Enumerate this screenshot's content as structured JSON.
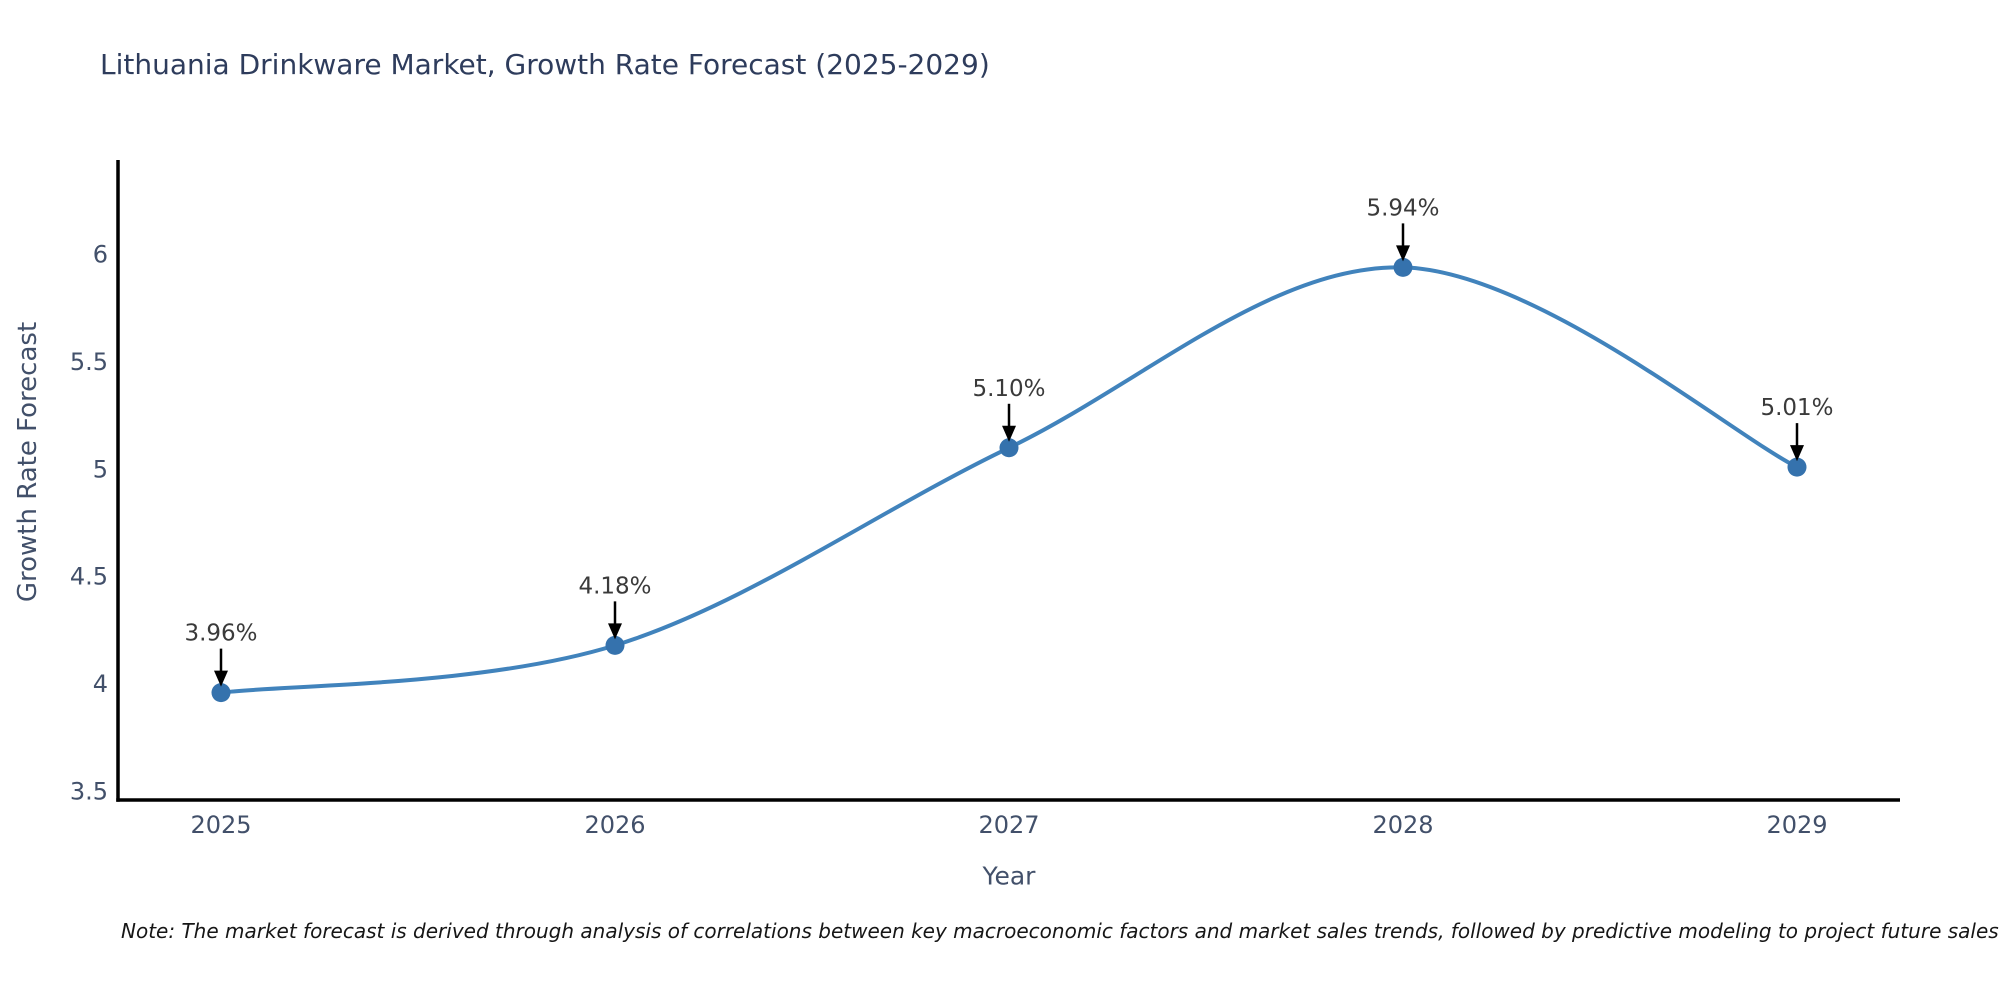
{
  "title": "Lithuania Drinkware Market, Growth Rate Forecast (2025-2029)",
  "note": "Note: The market forecast is derived through analysis of correlations between key macroeconomic factors and market sales trends, followed by predictive modeling to project future sales",
  "colors": {
    "title": "#2e3c5c",
    "tick": "#42506a",
    "axis": "#000000",
    "annotation_text": "#3a3a3a",
    "arrow": "#000000",
    "line": "#4183bc",
    "marker": "#3572ad",
    "note": "#161616"
  },
  "chart_data": {
    "type": "line",
    "title": "Lithuania Drinkware Market, Growth Rate Forecast (2025-2029)",
    "xlabel": "Year",
    "ylabel": "Growth Rate Forecast",
    "categories": [
      "2025",
      "2026",
      "2027",
      "2028",
      "2029"
    ],
    "series": [
      {
        "name": "Growth Rate Forecast",
        "values": [
          3.96,
          4.18,
          5.1,
          5.94,
          5.01
        ]
      }
    ],
    "point_labels": [
      "3.96%",
      "4.18%",
      "5.10%",
      "5.94%",
      "5.01%"
    ],
    "ytick_values": [
      3.5,
      4,
      4.5,
      5,
      5.5,
      6
    ],
    "ytick_labels": [
      "3.5",
      "4",
      "4.5",
      "5",
      "5.5",
      "6"
    ],
    "ylim": [
      3.46,
      6.44
    ],
    "grid": false,
    "legend": "none",
    "curve": "spline",
    "annotations": "value labels with downward arrows above each point"
  }
}
